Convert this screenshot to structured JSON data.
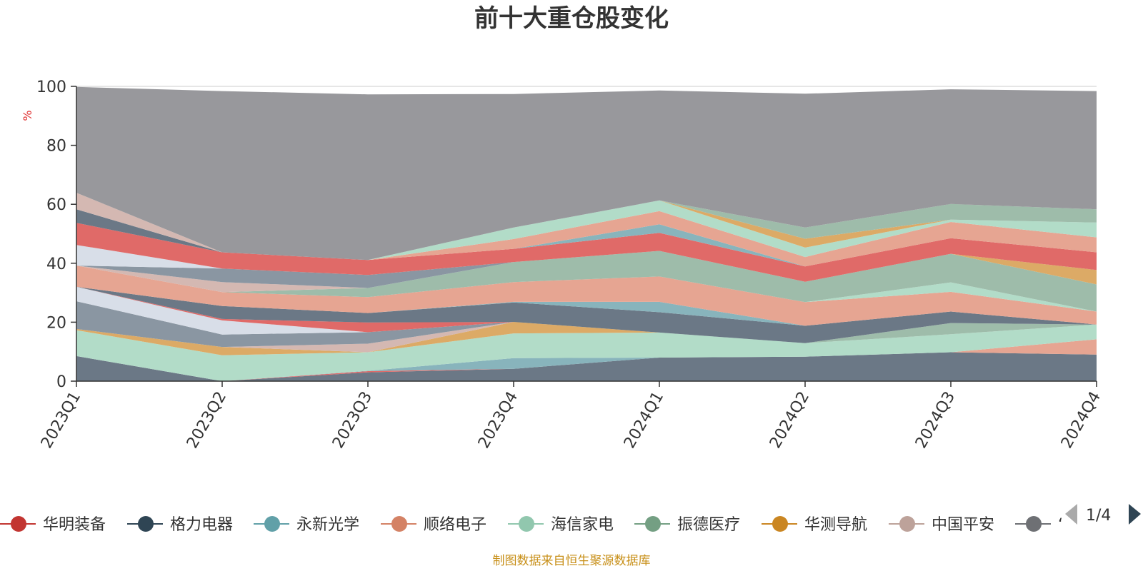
{
  "chart_data": {
    "type": "area",
    "title": "前十大重仓股变化",
    "ylabel": "%",
    "ylim": [
      0,
      100
    ],
    "yticks": [
      0,
      20,
      40,
      60,
      80,
      100
    ],
    "categories": [
      "2023Q1",
      "2023Q2",
      "2023Q3",
      "2023Q4",
      "2024Q1",
      "2024Q2",
      "2024Q3",
      "2024Q4"
    ],
    "bands": [
      {
        "color": "#6b7886",
        "values": [
          8.5,
          0,
          3,
          4.2,
          8,
          8.3,
          9.8,
          9
        ]
      },
      {
        "color": "#e06a68",
        "values": [
          0,
          0,
          0.4,
          0,
          0,
          0,
          0,
          0
        ]
      },
      {
        "color": "#88b4bc",
        "values": [
          0,
          0,
          0.1,
          3.6,
          0,
          0,
          0,
          0
        ]
      },
      {
        "color": "#e6a592",
        "values": [
          0,
          0,
          0,
          0,
          0,
          0,
          0,
          5.2
        ]
      },
      {
        "color": "#b2dcc8",
        "values": [
          8.8,
          8.8,
          6.3,
          8.4,
          8.5,
          4.6,
          6.1,
          5
        ]
      },
      {
        "color": "#dcaa66",
        "values": [
          0.4,
          2.8,
          0,
          3.9,
          0,
          0,
          0,
          0
        ]
      },
      {
        "color": "#d4b8b2",
        "values": [
          0,
          0,
          2.9,
          0,
          0,
          0,
          0,
          0
        ]
      },
      {
        "color": "#9ebcaa",
        "values": [
          0,
          0,
          0,
          0,
          0,
          0,
          3.8,
          0
        ]
      },
      {
        "color": "#8a96a2",
        "values": [
          9.4,
          4.2,
          3.9,
          0,
          0,
          0,
          0,
          0
        ]
      },
      {
        "color": "#d8dee8",
        "values": [
          4.9,
          4.8,
          0,
          0,
          0,
          0,
          0,
          0
        ]
      },
      {
        "color": "#e06a68",
        "values": [
          0,
          0.5,
          3.3,
          0,
          0,
          0,
          0,
          0
        ]
      },
      {
        "color": "#6b7886",
        "values": [
          0,
          4.4,
          3.2,
          6.6,
          6.9,
          5.9,
          3.9,
          0
        ]
      },
      {
        "color": "#88b4bc",
        "values": [
          0,
          0,
          0,
          0.2,
          3.5,
          0,
          0,
          0
        ]
      },
      {
        "color": "#e6a592",
        "values": [
          7.2,
          4.7,
          5.4,
          6.7,
          8.6,
          8,
          6.7,
          4.4
        ]
      },
      {
        "color": "#b2dcc8",
        "values": [
          0,
          0,
          0,
          0,
          0,
          0,
          3.2,
          0
        ]
      },
      {
        "color": "#9ebcaa",
        "values": [
          0,
          0,
          3.1,
          6.8,
          8.7,
          6.9,
          9.7,
          9.2
        ]
      },
      {
        "color": "#d4b8b2",
        "values": [
          0,
          3.4,
          0,
          0,
          0,
          0,
          0,
          0
        ]
      },
      {
        "color": "#8a96a2",
        "values": [
          0,
          4.6,
          4.4,
          0,
          0,
          0,
          0,
          0
        ]
      },
      {
        "color": "#dcaa66",
        "values": [
          0,
          0,
          0,
          0,
          0,
          0,
          0,
          4.9
        ]
      },
      {
        "color": "#d8dee8",
        "values": [
          7,
          0,
          0,
          0,
          0,
          0,
          0,
          0
        ]
      },
      {
        "color": "#e06a68",
        "values": [
          7.5,
          5.5,
          5.1,
          4.5,
          6.1,
          5.2,
          5.3,
          6
        ]
      },
      {
        "color": "#88b4bc",
        "values": [
          0,
          0,
          0,
          0,
          2.9,
          0,
          0,
          0
        ]
      },
      {
        "color": "#e6a592",
        "values": [
          0,
          0,
          0,
          3.3,
          4.5,
          3.2,
          5.5,
          5.1
        ]
      },
      {
        "color": "#b2dcc8",
        "values": [
          0,
          0,
          0,
          3.9,
          3.6,
          3.2,
          0.8,
          5
        ]
      },
      {
        "color": "#dcaa66",
        "values": [
          0,
          0,
          0,
          0,
          0,
          3,
          0,
          0
        ]
      },
      {
        "color": "#9ebcaa",
        "values": [
          0,
          0,
          0,
          0,
          0,
          3.8,
          5.3,
          4.5
        ]
      },
      {
        "color": "#6b7886",
        "values": [
          4.6,
          0,
          0,
          0,
          0,
          0,
          0,
          0
        ]
      },
      {
        "color": "#d4b8b2",
        "values": [
          5.6,
          0,
          0,
          0,
          0,
          0,
          0,
          0
        ]
      },
      {
        "color": "#98989c",
        "values": [
          35.9,
          54.7,
          56.2,
          45.3,
          37.3,
          45.4,
          38.9,
          40.1
        ]
      }
    ],
    "series": [
      {
        "name": "华明装备",
        "color": "#c23531"
      },
      {
        "name": "格力电器",
        "color": "#2f4554"
      },
      {
        "name": "永新光学",
        "color": "#61a0a8"
      },
      {
        "name": "顺络电子",
        "color": "#d48265"
      },
      {
        "name": "海信家电",
        "color": "#91c7ae"
      },
      {
        "name": "振德医疗",
        "color": "#749f83"
      },
      {
        "name": "华测导航",
        "color": "#ca8622"
      },
      {
        "name": "中国平安",
        "color": "#bda29a"
      },
      {
        "name": "…",
        "color": "#6e7074"
      }
    ]
  },
  "legend": {
    "items": [
      "华明装备",
      "格力电器",
      "永新光学",
      "顺络电子",
      "海信家电",
      "振德医疗",
      "华测导航",
      "中国平安",
      "‘"
    ],
    "page": "1/4"
  },
  "footer": "制图数据来自恒生聚源数据库"
}
